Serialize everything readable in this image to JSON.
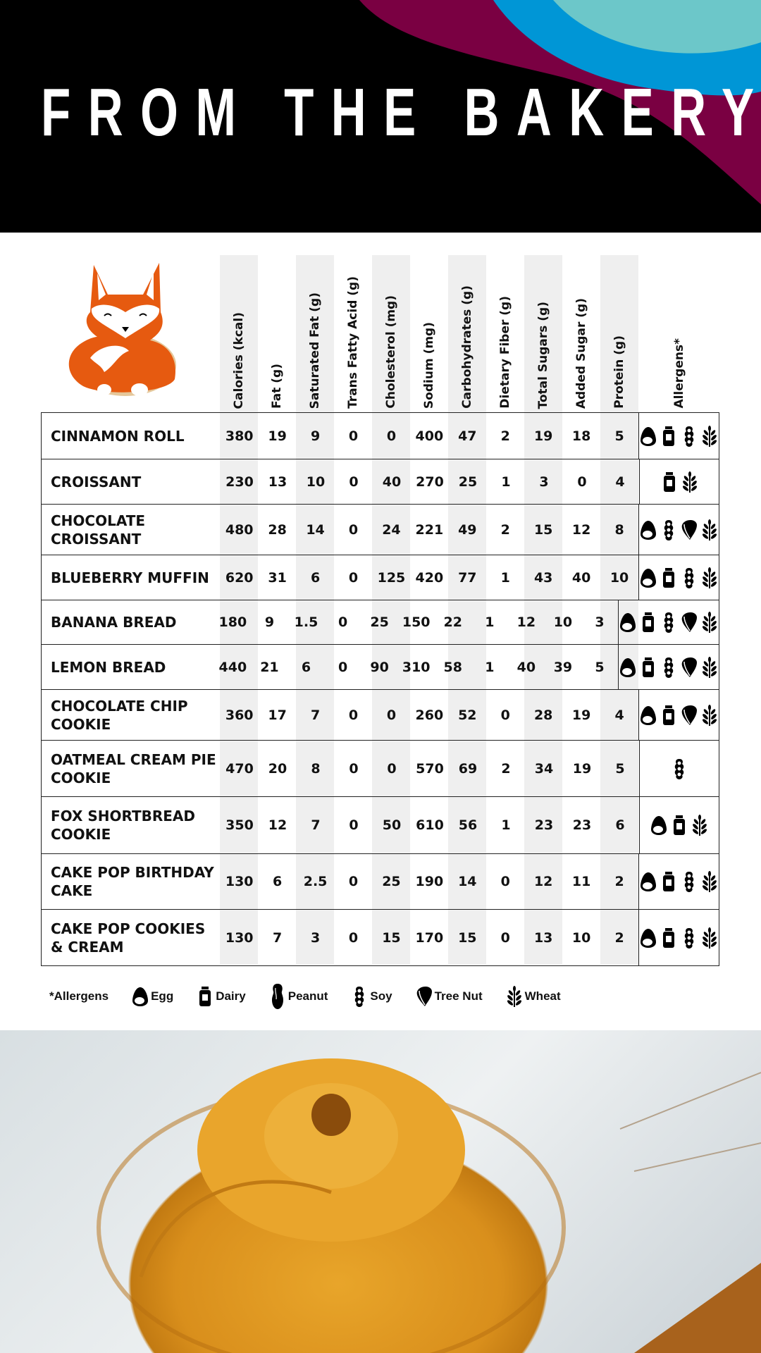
{
  "header": {
    "title": "FROM THE BAKERY",
    "colors": {
      "background": "#000000",
      "maroon": "#7a0042",
      "blue": "#0096d6",
      "teal": "#6cc7c9"
    }
  },
  "columns": [
    "Calories (kcal)",
    "Fat (g)",
    "Saturated Fat (g)",
    "Trans Fatty Acid (g)",
    "Cholesterol (mg)",
    "Sodium (mg)",
    "Carbohydrates (g)",
    "Dietary Fiber (g)",
    "Total Sugars (g)",
    "Added Sugar (g)",
    "Protein (g)",
    "Allergens*"
  ],
  "rows": [
    {
      "name": "CINNAMON ROLL",
      "values": [
        "380",
        "19",
        "9",
        "0",
        "0",
        "400",
        "47",
        "2",
        "19",
        "18",
        "5"
      ],
      "allergens": [
        "egg",
        "dairy",
        "soy",
        "wheat"
      ]
    },
    {
      "name": "CROISSANT",
      "values": [
        "230",
        "13",
        "10",
        "0",
        "40",
        "270",
        "25",
        "1",
        "3",
        "0",
        "4"
      ],
      "allergens": [
        "dairy",
        "wheat"
      ]
    },
    {
      "name": "CHOCOLATE CROISSANT",
      "values": [
        "480",
        "28",
        "14",
        "0",
        "24",
        "221",
        "49",
        "2",
        "15",
        "12",
        "8"
      ],
      "allergens": [
        "egg",
        "soy",
        "tree-nut",
        "wheat"
      ]
    },
    {
      "name": "BLUEBERRY MUFFIN",
      "values": [
        "620",
        "31",
        "6",
        "0",
        "125",
        "420",
        "77",
        "1",
        "43",
        "40",
        "10"
      ],
      "allergens": [
        "egg",
        "dairy",
        "soy",
        "wheat"
      ]
    },
    {
      "name": "BANANA BREAD",
      "values": [
        "180",
        "9",
        "1.5",
        "0",
        "25",
        "150",
        "22",
        "1",
        "12",
        "10",
        "3"
      ],
      "allergens": [
        "egg",
        "dairy",
        "soy",
        "tree-nut",
        "wheat"
      ]
    },
    {
      "name": "LEMON BREAD",
      "values": [
        "440",
        "21",
        "6",
        "0",
        "90",
        "310",
        "58",
        "1",
        "40",
        "39",
        "5"
      ],
      "allergens": [
        "egg",
        "dairy",
        "soy",
        "tree-nut",
        "wheat"
      ]
    },
    {
      "name": "CHOCOLATE CHIP COOKIE",
      "values": [
        "360",
        "17",
        "7",
        "0",
        "0",
        "260",
        "52",
        "0",
        "28",
        "19",
        "4"
      ],
      "allergens": [
        "egg",
        "dairy",
        "tree-nut",
        "wheat"
      ]
    },
    {
      "name": "OATMEAL CREAM PIE COOKIE",
      "values": [
        "470",
        "20",
        "8",
        "0",
        "0",
        "570",
        "69",
        "2",
        "34",
        "19",
        "5"
      ],
      "allergens": [
        "soy"
      ]
    },
    {
      "name": "FOX SHORTBREAD COOKIE",
      "values": [
        "350",
        "12",
        "7",
        "0",
        "50",
        "610",
        "56",
        "1",
        "23",
        "23",
        "6"
      ],
      "allergens": [
        "egg",
        "dairy",
        "wheat"
      ]
    },
    {
      "name": "CAKE POP BIRTHDAY CAKE",
      "values": [
        "130",
        "6",
        "2.5",
        "0",
        "25",
        "190",
        "14",
        "0",
        "12",
        "11",
        "2"
      ],
      "allergens": [
        "egg",
        "dairy",
        "soy",
        "wheat"
      ]
    },
    {
      "name": "CAKE POP COOKIES & CREAM",
      "values": [
        "130",
        "7",
        "3",
        "0",
        "15",
        "170",
        "15",
        "0",
        "13",
        "10",
        "2"
      ],
      "allergens": [
        "egg",
        "dairy",
        "soy",
        "wheat"
      ]
    }
  ],
  "legend": {
    "title": "*Allergens",
    "items": [
      {
        "icon": "egg",
        "label": "Egg"
      },
      {
        "icon": "dairy",
        "label": "Dairy"
      },
      {
        "icon": "peanut",
        "label": "Peanut"
      },
      {
        "icon": "soy",
        "label": "Soy"
      },
      {
        "icon": "tree-nut",
        "label": "Tree Nut"
      },
      {
        "icon": "wheat",
        "label": "Wheat"
      }
    ]
  }
}
